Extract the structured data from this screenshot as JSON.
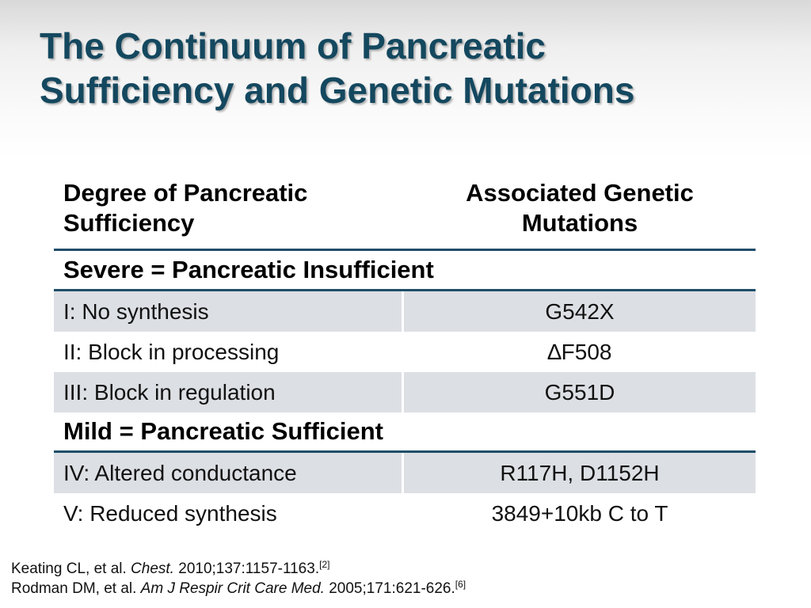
{
  "title": {
    "line1": "The Continuum of Pancreatic",
    "line2": "Sufficiency and Genetic Mutations"
  },
  "table": {
    "header_left": [
      "Degree of Pancreatic",
      "Sufficiency"
    ],
    "header_right": [
      "Associated Genetic",
      "Mutations"
    ],
    "groups": [
      {
        "label": "Severe = Pancreatic Insufficient",
        "rows": [
          {
            "class": "I: No synthesis",
            "mutation": "G542X"
          },
          {
            "class": "II: Block in processing",
            "mutation": "∆F508"
          },
          {
            "class": "III: Block in regulation",
            "mutation": "G551D"
          }
        ]
      },
      {
        "label": "Mild = Pancreatic Sufficient",
        "rows": [
          {
            "class": "IV: Altered conductance",
            "mutation": "R117H, D1152H"
          },
          {
            "class": "V: Reduced synthesis",
            "mutation": "3849+10kb C to T"
          }
        ]
      }
    ]
  },
  "references": [
    {
      "authors": "Keating CL, et al. ",
      "journal": "Chest.",
      "details": " 2010;137:1157-1163.",
      "ref": "[2]"
    },
    {
      "authors": "Rodman DM, et al. ",
      "journal": "Am J Respir Crit Care Med.",
      "details": " 2005;171:621-626.",
      "ref": "[6]"
    }
  ],
  "colors": {
    "title": "#14485f",
    "rule": "#1f4e69",
    "row_shade": "#dcdfe3"
  }
}
